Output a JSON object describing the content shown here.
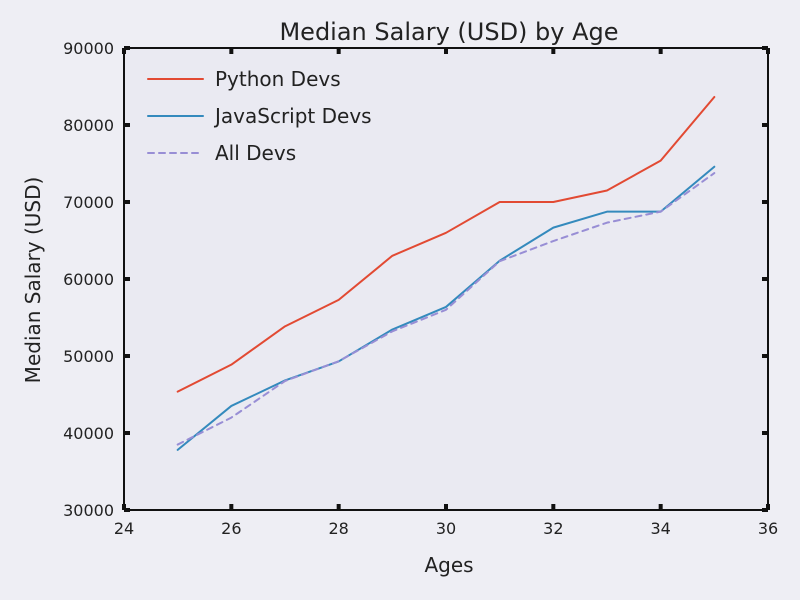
{
  "chart_data": {
    "type": "line",
    "title": "Median Salary (USD) by Age",
    "xlabel": "Ages",
    "ylabel": "Median Salary (USD)",
    "xlim": [
      24,
      36
    ],
    "ylim": [
      30000,
      90000
    ],
    "xticks": [
      24,
      26,
      28,
      30,
      32,
      34,
      36
    ],
    "yticks": [
      30000,
      40000,
      50000,
      60000,
      70000,
      80000,
      90000
    ],
    "x": [
      25,
      26,
      27,
      28,
      29,
      30,
      31,
      32,
      33,
      34,
      35
    ],
    "series": [
      {
        "name": "Python Devs",
        "color": "#e24a33",
        "style": "solid",
        "values": [
          45372,
          48876,
          53850,
          57287,
          63016,
          65998,
          70003,
          70000,
          71496,
          75370,
          83640
        ]
      },
      {
        "name": "JavaScript Devs",
        "color": "#348abd",
        "style": "solid",
        "values": [
          37810,
          43515,
          46823,
          49293,
          53437,
          56373,
          62375,
          66674,
          68745,
          68746,
          74583
        ]
      },
      {
        "name": "All Devs",
        "color": "#988ed5",
        "style": "dashed",
        "values": [
          38496,
          42000,
          46752,
          49320,
          53200,
          56000,
          62316,
          64928,
          67317,
          68748,
          73752
        ]
      }
    ],
    "legend_position": "top-left",
    "grid": false,
    "background": "#eaeaf2",
    "figure_background": "#eeeef4"
  }
}
